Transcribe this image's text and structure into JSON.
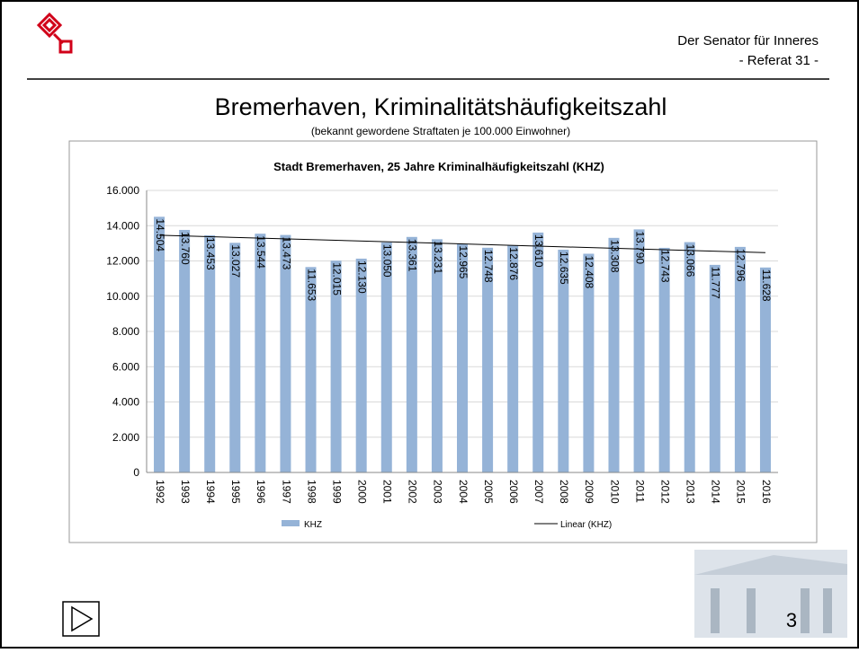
{
  "header": {
    "line1": "Der Senator für Inneres",
    "line2": "- Referat 31 -"
  },
  "slide": {
    "title": "Bremerhaven, Kriminalitätshäufigkeitszahl",
    "subtitle": "(bekannt gewordene Straftaten je 100.000 Einwohner)",
    "page_number": "3"
  },
  "chart_data": {
    "type": "bar",
    "title": "Stadt Bremerhaven, 25 Jahre Kriminalhäufigkeitszahl (KHZ)",
    "categories": [
      "1992",
      "1993",
      "1994",
      "1995",
      "1996",
      "1997",
      "1998",
      "1999",
      "2000",
      "2001",
      "2002",
      "2003",
      "2004",
      "2005",
      "2006",
      "2007",
      "2008",
      "2009",
      "2010",
      "2011",
      "2012",
      "2013",
      "2014",
      "2015",
      "2016"
    ],
    "series": [
      {
        "name": "KHZ",
        "color": "#95b3d7",
        "values": [
          14504,
          13760,
          13453,
          13027,
          13544,
          13473,
          11653,
          12015,
          12130,
          13050,
          13361,
          13231,
          12965,
          12748,
          12876,
          13610,
          12635,
          12408,
          13308,
          13790,
          12743,
          13066,
          11777,
          12796,
          11628
        ],
        "value_labels": [
          "14.504",
          "13.760",
          "13.453",
          "13.027",
          "13.544",
          "13.473",
          "11.653",
          "12.015",
          "12.130",
          "13.050",
          "13.361",
          "13.231",
          "12.965",
          "12.748",
          "12.876",
          "13.610",
          "12.635",
          "12.408",
          "13.308",
          "13.790",
          "12.743",
          "13.066",
          "11.777",
          "12.796",
          "11.628"
        ]
      }
    ],
    "trendline": {
      "name": "Linear (KHZ)",
      "color": "#000000",
      "values": [
        13460,
        12470
      ]
    },
    "ylim": [
      0,
      16000
    ],
    "yticks": [
      0,
      {
        "value": 2000,
        "label": "2.000"
      },
      {
        "value": 4000,
        "label": "4.000"
      },
      {
        "value": 6000,
        "label": "6.000"
      },
      {
        "value": 8000,
        "label": "8.000"
      },
      {
        "value": 10000,
        "label": "10.000"
      },
      {
        "value": 12000,
        "label": "12.000"
      },
      {
        "value": 14000,
        "label": "14.000"
      },
      {
        "value": 16000,
        "label": "16.000"
      }
    ],
    "grid": true,
    "legend": "bottom"
  }
}
